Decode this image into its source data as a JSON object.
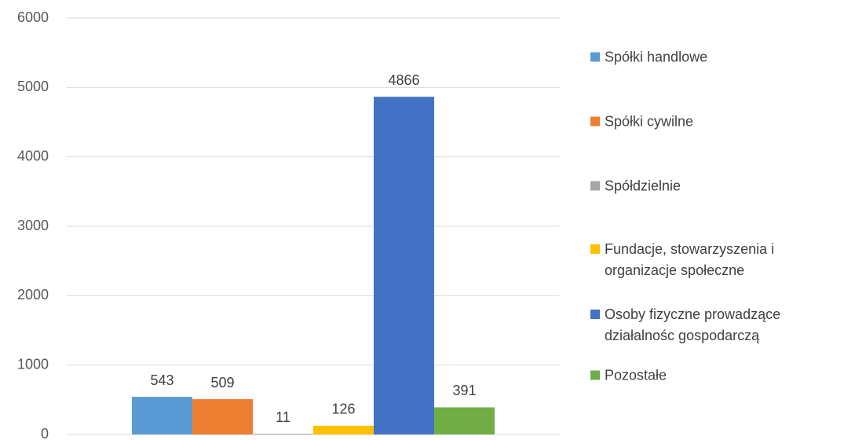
{
  "chart_data": {
    "type": "bar",
    "categories": [
      null
    ],
    "series": [
      {
        "name": "Spółki handlowe",
        "color": "#5b9bd5",
        "values": [
          543
        ]
      },
      {
        "name": "Spółki cywilne",
        "color": "#ed7d31",
        "values": [
          509
        ]
      },
      {
        "name": "Spółdzielnie",
        "color": "#a5a5a5",
        "values": [
          11
        ]
      },
      {
        "name": "Fundacje, stowarzyszenia i organizacje społeczne",
        "color": "#ffc000",
        "values": [
          126
        ]
      },
      {
        "name": "Osoby fizyczne prowadzące działalnośc gospodarczą",
        "color": "#4472c4",
        "values": [
          4866
        ]
      },
      {
        "name": "Pozostałe",
        "color": "#70ad47",
        "values": [
          391
        ]
      }
    ],
    "ylim": [
      0,
      6000
    ],
    "yticks": [
      0,
      1000,
      2000,
      3000,
      4000,
      5000,
      6000
    ],
    "grid": true,
    "legend": "right"
  }
}
